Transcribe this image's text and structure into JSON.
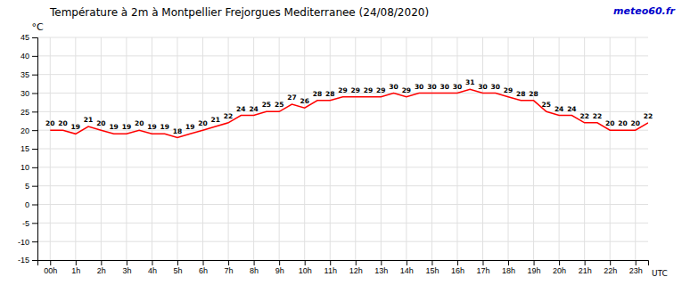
{
  "chart_data": {
    "type": "line",
    "title": "Température à 2m à Montpellier Frejorgues Mediterranee (24/08/2020)",
    "ylabel": "°C",
    "annotations": [
      {
        "text": "meteo60.fr",
        "color": "#0000cc"
      },
      {
        "text": "UTC"
      }
    ],
    "x": [
      0,
      0.5,
      1,
      1.5,
      2,
      2.5,
      3,
      3.5,
      4,
      4.5,
      5,
      5.5,
      6,
      6.5,
      7,
      7.5,
      8,
      8.5,
      9,
      9.5,
      10,
      10.5,
      11,
      11.5,
      12,
      12.5,
      13,
      13.5,
      14,
      14.5,
      15,
      15.5,
      16,
      16.5,
      17,
      17.5,
      18,
      18.5,
      19,
      19.5,
      20,
      20.5,
      21,
      21.5,
      22,
      22.5,
      23,
      23.5
    ],
    "values": [
      20,
      20,
      19,
      21,
      20,
      19,
      19,
      20,
      19,
      19,
      18,
      19,
      20,
      21,
      22,
      24,
      24,
      25,
      25,
      27,
      26,
      28,
      28,
      29,
      29,
      29,
      29,
      30,
      29,
      30,
      30,
      30,
      30,
      31,
      30,
      30,
      29,
      28,
      28,
      25,
      24,
      24,
      22,
      22,
      20,
      20,
      20,
      22
    ],
    "color": "#ff0000",
    "xlim": [
      -0.5,
      23.5
    ],
    "xticks": [
      {
        "value": 0,
        "label": "00h"
      },
      {
        "value": 1,
        "label": "1h"
      },
      {
        "value": 2,
        "label": "2h"
      },
      {
        "value": 3,
        "label": "3h"
      },
      {
        "value": 4,
        "label": "4h"
      },
      {
        "value": 5,
        "label": "5h"
      },
      {
        "value": 6,
        "label": "6h"
      },
      {
        "value": 7,
        "label": "7h"
      },
      {
        "value": 8,
        "label": "8h"
      },
      {
        "value": 9,
        "label": "9h"
      },
      {
        "value": 10,
        "label": "10h"
      },
      {
        "value": 11,
        "label": "11h"
      },
      {
        "value": 12,
        "label": "12h"
      },
      {
        "value": 13,
        "label": "13h"
      },
      {
        "value": 14,
        "label": "14h"
      },
      {
        "value": 15,
        "label": "15h"
      },
      {
        "value": 16,
        "label": "16h"
      },
      {
        "value": 17,
        "label": "17h"
      },
      {
        "value": 18,
        "label": "18h"
      },
      {
        "value": 19,
        "label": "19h"
      },
      {
        "value": 20,
        "label": "20h"
      },
      {
        "value": 21,
        "label": "21h"
      },
      {
        "value": 22,
        "label": "22h"
      },
      {
        "value": 23,
        "label": "23h"
      }
    ],
    "ylim": [
      -15,
      45
    ],
    "yticks": [
      -15,
      -10,
      -5,
      0,
      5,
      10,
      15,
      20,
      25,
      30,
      35,
      40,
      45
    ],
    "grid": true,
    "data_labels": true
  }
}
